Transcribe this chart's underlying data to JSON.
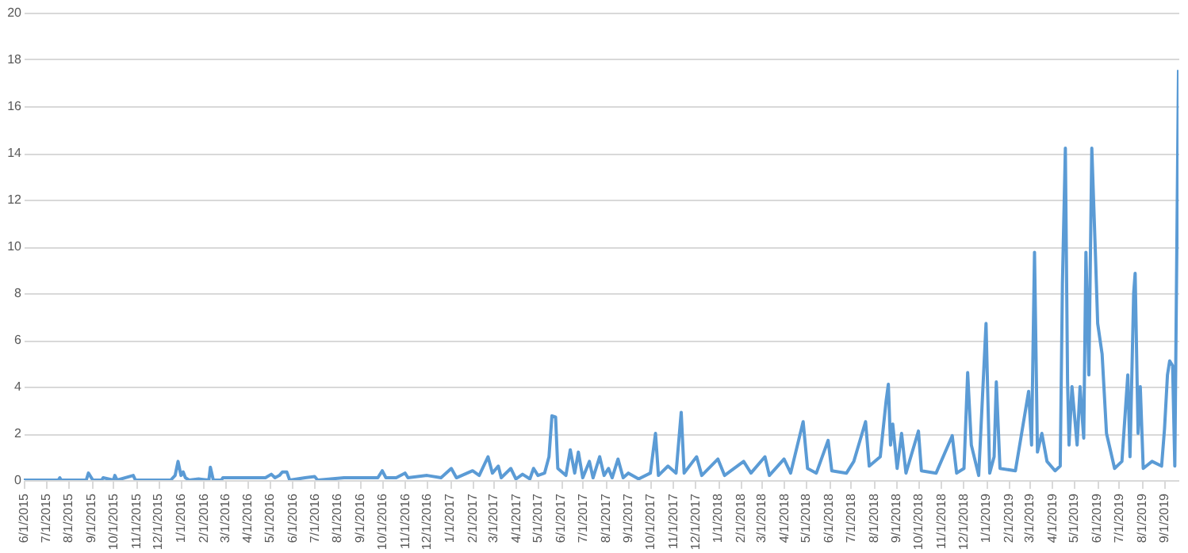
{
  "chart_data": {
    "type": "line",
    "grid": "y",
    "x": [
      "2015-06-01",
      "2015-07-18",
      "2015-07-20",
      "2015-07-22",
      "2015-08-25",
      "2015-08-28",
      "2015-09-03",
      "2015-09-15",
      "2015-09-17",
      "2015-10-01",
      "2015-10-03",
      "2015-10-06",
      "2015-10-28",
      "2015-10-31",
      "2015-12-18",
      "2015-12-24",
      "2015-12-28",
      "2016-01-01",
      "2016-01-04",
      "2016-01-07",
      "2016-01-12",
      "2016-01-25",
      "2016-02-08",
      "2016-02-10",
      "2016-02-14",
      "2016-02-25",
      "2016-02-27",
      "2016-04-25",
      "2016-05-03",
      "2016-05-08",
      "2016-05-14",
      "2016-05-18",
      "2016-05-24",
      "2016-05-28",
      "2016-06-18",
      "2016-07-01",
      "2016-07-05",
      "2016-08-10",
      "2016-09-25",
      "2016-10-01",
      "2016-10-06",
      "2016-10-20",
      "2016-11-01",
      "2016-11-05",
      "2016-12-01",
      "2016-12-20",
      "2017-01-03",
      "2017-01-10",
      "2017-02-01",
      "2017-02-10",
      "2017-02-22",
      "2017-02-28",
      "2017-03-08",
      "2017-03-12",
      "2017-03-25",
      "2017-04-01",
      "2017-04-10",
      "2017-04-20",
      "2017-04-25",
      "2017-05-01",
      "2017-05-10",
      "2017-05-16",
      "2017-05-20",
      "2017-05-25",
      "2017-05-28",
      "2017-06-08",
      "2017-06-14",
      "2017-06-20",
      "2017-06-25",
      "2017-07-01",
      "2017-07-10",
      "2017-07-15",
      "2017-07-24",
      "2017-07-30",
      "2017-08-05",
      "2017-08-10",
      "2017-08-18",
      "2017-08-25",
      "2017-09-01",
      "2017-09-15",
      "2017-10-01",
      "2017-10-08",
      "2017-10-12",
      "2017-10-25",
      "2017-11-05",
      "2017-11-12",
      "2017-11-16",
      "2017-11-28",
      "2017-12-03",
      "2017-12-10",
      "2018-01-01",
      "2018-01-10",
      "2018-02-05",
      "2018-02-15",
      "2018-03-06",
      "2018-03-12",
      "2018-04-01",
      "2018-04-10",
      "2018-04-27",
      "2018-05-03",
      "2018-05-15",
      "2018-05-31",
      "2018-06-05",
      "2018-06-25",
      "2018-07-05",
      "2018-07-21",
      "2018-07-26",
      "2018-08-10",
      "2018-08-18",
      "2018-08-21",
      "2018-08-24",
      "2018-08-27",
      "2018-09-02",
      "2018-09-08",
      "2018-09-14",
      "2018-10-01",
      "2018-10-05",
      "2018-10-25",
      "2018-11-16",
      "2018-11-22",
      "2018-12-02",
      "2018-12-07",
      "2018-12-12",
      "2018-12-22",
      "2019-01-01",
      "2019-01-06",
      "2019-01-12",
      "2019-01-15",
      "2019-01-20",
      "2019-02-10",
      "2019-02-28",
      "2019-03-04",
      "2019-03-08",
      "2019-03-12",
      "2019-03-18",
      "2019-03-25",
      "2019-04-05",
      "2019-04-12",
      "2019-04-15",
      "2019-04-19",
      "2019-04-22",
      "2019-04-24",
      "2019-04-28",
      "2019-05-05",
      "2019-05-09",
      "2019-05-14",
      "2019-05-17",
      "2019-05-21",
      "2019-05-25",
      "2019-05-30",
      "2019-06-02",
      "2019-06-08",
      "2019-06-14",
      "2019-06-25",
      "2019-07-05",
      "2019-07-13",
      "2019-07-16",
      "2019-07-21",
      "2019-07-23",
      "2019-07-27",
      "2019-07-30",
      "2019-08-03",
      "2019-08-15",
      "2019-08-28",
      "2019-09-01",
      "2019-09-05",
      "2019-09-08",
      "2019-09-12",
      "2019-09-15",
      "2019-09-20"
    ],
    "series": [
      {
        "color": "#5b9bd5",
        "values": [
          0,
          0,
          0.1,
          0,
          0,
          0.3,
          0,
          0,
          0.1,
          0,
          0.2,
          0,
          0.2,
          0,
          0,
          0.2,
          0.8,
          0.2,
          0.35,
          0.1,
          0,
          0.05,
          0,
          0.55,
          0,
          0,
          0.1,
          0.1,
          0.25,
          0.1,
          0.2,
          0.35,
          0.35,
          0,
          0.1,
          0.15,
          0,
          0.1,
          0.1,
          0.4,
          0.1,
          0.1,
          0.3,
          0.1,
          0.2,
          0.1,
          0.5,
          0.1,
          0.4,
          0.2,
          1.0,
          0.3,
          0.6,
          0.1,
          0.5,
          0.05,
          0.25,
          0.05,
          0.5,
          0.2,
          0.3,
          1.0,
          2.75,
          2.7,
          0.5,
          0.2,
          1.3,
          0.3,
          1.2,
          0.1,
          0.8,
          0.1,
          1.0,
          0.2,
          0.5,
          0.1,
          0.9,
          0.1,
          0.3,
          0.05,
          0.3,
          2.0,
          0.2,
          0.6,
          0.3,
          2.9,
          0.3,
          0.8,
          1.0,
          0.2,
          0.9,
          0.2,
          0.8,
          0.3,
          1.0,
          0.2,
          0.9,
          0.3,
          2.5,
          0.5,
          0.3,
          1.7,
          0.4,
          0.3,
          0.8,
          2.5,
          0.6,
          1.0,
          3.4,
          4.1,
          1.5,
          2.4,
          0.5,
          2.0,
          0.3,
          2.1,
          0.4,
          0.3,
          1.9,
          0.3,
          0.5,
          4.6,
          1.5,
          0.2,
          6.7,
          0.3,
          1.0,
          4.2,
          0.5,
          0.4,
          3.8,
          1.5,
          9.75,
          1.2,
          2.0,
          0.8,
          0.4,
          0.6,
          8.4,
          14.2,
          4.2,
          1.5,
          4.0,
          1.5,
          4.0,
          1.8,
          9.75,
          4.5,
          14.2,
          9.6,
          6.7,
          5.4,
          2.0,
          0.5,
          0.8,
          4.5,
          1.0,
          8.0,
          8.85,
          2.0,
          4.0,
          0.5,
          0.8,
          0.6,
          2.2,
          4.5,
          5.1,
          4.9,
          0.6,
          17.55
        ]
      }
    ],
    "ylim": [
      0,
      20
    ],
    "yticks": [
      0,
      2,
      4,
      6,
      8,
      10,
      12,
      14,
      16,
      18,
      20
    ],
    "xlim": [
      "2015-06-01",
      "2019-09-20"
    ],
    "xticks": [
      {
        "value": "2015-06-01",
        "label": "6/1/2015"
      },
      {
        "value": "2015-07-01",
        "label": "7/1/2015"
      },
      {
        "value": "2015-08-01",
        "label": "8/1/2015"
      },
      {
        "value": "2015-09-01",
        "label": "9/1/2015"
      },
      {
        "value": "2015-10-01",
        "label": "10/1/2015"
      },
      {
        "value": "2015-11-01",
        "label": "11/1/2015"
      },
      {
        "value": "2015-12-01",
        "label": "12/1/2015"
      },
      {
        "value": "2016-01-01",
        "label": "1/1/2016"
      },
      {
        "value": "2016-02-01",
        "label": "2/1/2016"
      },
      {
        "value": "2016-03-01",
        "label": "3/1/2016"
      },
      {
        "value": "2016-04-01",
        "label": "4/1/2016"
      },
      {
        "value": "2016-05-01",
        "label": "5/1/2016"
      },
      {
        "value": "2016-06-01",
        "label": "6/1/2016"
      },
      {
        "value": "2016-07-01",
        "label": "7/1/2016"
      },
      {
        "value": "2016-08-01",
        "label": "8/1/2016"
      },
      {
        "value": "2016-09-01",
        "label": "9/1/2016"
      },
      {
        "value": "2016-10-01",
        "label": "10/1/2016"
      },
      {
        "value": "2016-11-01",
        "label": "11/1/2016"
      },
      {
        "value": "2016-12-01",
        "label": "12/1/2016"
      },
      {
        "value": "2017-01-01",
        "label": "1/1/2017"
      },
      {
        "value": "2017-02-01",
        "label": "2/1/2017"
      },
      {
        "value": "2017-03-01",
        "label": "3/1/2017"
      },
      {
        "value": "2017-04-01",
        "label": "4/1/2017"
      },
      {
        "value": "2017-05-01",
        "label": "5/1/2017"
      },
      {
        "value": "2017-06-01",
        "label": "6/1/2017"
      },
      {
        "value": "2017-07-01",
        "label": "7/1/2017"
      },
      {
        "value": "2017-08-01",
        "label": "8/1/2017"
      },
      {
        "value": "2017-09-01",
        "label": "9/1/2017"
      },
      {
        "value": "2017-10-01",
        "label": "10/1/2017"
      },
      {
        "value": "2017-11-01",
        "label": "11/1/2017"
      },
      {
        "value": "2017-12-01",
        "label": "12/1/2017"
      },
      {
        "value": "2018-01-01",
        "label": "1/1/2018"
      },
      {
        "value": "2018-02-01",
        "label": "2/1/2018"
      },
      {
        "value": "2018-03-01",
        "label": "3/1/2018"
      },
      {
        "value": "2018-04-01",
        "label": "4/1/2018"
      },
      {
        "value": "2018-05-01",
        "label": "5/1/2018"
      },
      {
        "value": "2018-06-01",
        "label": "6/1/2018"
      },
      {
        "value": "2018-07-01",
        "label": "7/1/2018"
      },
      {
        "value": "2018-08-01",
        "label": "8/1/2018"
      },
      {
        "value": "2018-09-01",
        "label": "9/1/2018"
      },
      {
        "value": "2018-10-01",
        "label": "10/1/2018"
      },
      {
        "value": "2018-11-01",
        "label": "11/1/2018"
      },
      {
        "value": "2018-12-01",
        "label": "12/1/2018"
      },
      {
        "value": "2019-01-01",
        "label": "1/1/2019"
      },
      {
        "value": "2019-02-01",
        "label": "2/1/2019"
      },
      {
        "value": "2019-03-01",
        "label": "3/1/2019"
      },
      {
        "value": "2019-04-01",
        "label": "4/1/2019"
      },
      {
        "value": "2019-05-01",
        "label": "5/1/2019"
      },
      {
        "value": "2019-06-01",
        "label": "6/1/2019"
      },
      {
        "value": "2019-07-01",
        "label": "7/1/2019"
      },
      {
        "value": "2019-08-01",
        "label": "8/1/2019"
      },
      {
        "value": "2019-09-01",
        "label": "9/1/2019"
      }
    ]
  }
}
